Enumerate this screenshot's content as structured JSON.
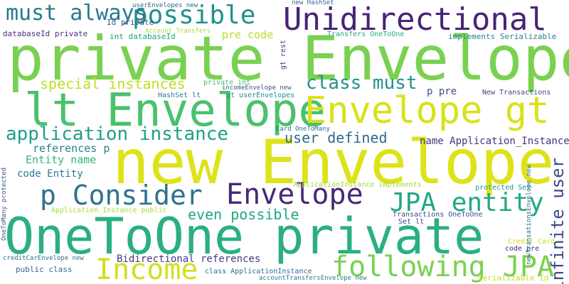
{
  "words": [
    {
      "text": "private Envelope",
      "color": "#7ad151"
    },
    {
      "text": "new Envelope",
      "color": "#dde318"
    },
    {
      "text": "OneToOne private",
      "color": "#2ab07f"
    },
    {
      "text": "lt Envelope",
      "color": "#4ac16d"
    },
    {
      "text": "Envelope gt",
      "color": "#d8e219"
    },
    {
      "text": "Unidirectional",
      "color": "#482475"
    },
    {
      "text": "possible",
      "color": "#21918c"
    },
    {
      "text": "must always",
      "color": "#29798e"
    },
    {
      "text": "p Consider",
      "color": "#2c728e"
    },
    {
      "text": "Envelope",
      "color": "#482878"
    },
    {
      "text": "JPA entity",
      "color": "#22a884"
    },
    {
      "text": "following JPA",
      "color": "#7ad151"
    },
    {
      "text": "Income",
      "color": "#d0e11c"
    },
    {
      "text": "application instance",
      "color": "#1f9e89"
    },
    {
      "text": "special instances",
      "color": "#bddf26"
    },
    {
      "text": "class must",
      "color": "#21918c"
    },
    {
      "text": "infinite user",
      "color": "#3e4a89"
    },
    {
      "text": "user defined",
      "color": "#31688e"
    },
    {
      "text": "even possible",
      "color": "#20a486"
    },
    {
      "text": "references p",
      "color": "#26828e"
    },
    {
      "text": "Entity name",
      "color": "#35b779"
    },
    {
      "text": "code Entity",
      "color": "#287c8e"
    },
    {
      "text": "name Application_Instance",
      "color": "#46337e"
    },
    {
      "text": "Bidirectional references",
      "color": "#443983"
    },
    {
      "text": "pre code",
      "color": "#b5de2b"
    },
    {
      "text": "p pre",
      "color": "#3b528b"
    },
    {
      "text": "public class",
      "color": "#31688e"
    },
    {
      "text": "userEnvelopes new",
      "color": "#33638d"
    },
    {
      "text": "Id private",
      "color": "#3b528b"
    },
    {
      "text": "databaseId private",
      "color": "#46327e"
    },
    {
      "text": "int databaseId",
      "color": "#1fa188"
    },
    {
      "text": "Account Transfers",
      "color": "#a8db34"
    },
    {
      "text": "new HashSet",
      "color": "#31688e"
    },
    {
      "text": "Transfers OneToOne",
      "color": "#22a884"
    },
    {
      "text": "implements Serializable",
      "color": "#26828e"
    },
    {
      "text": "gt rest",
      "color": "#453781"
    },
    {
      "text": "private int",
      "color": "#3fbc73"
    },
    {
      "text": "HashSet lt",
      "color": "#2a788e"
    },
    {
      "text": "incomeEnvelope new",
      "color": "#3b528b"
    },
    {
      "text": "gt userEnvelopes",
      "color": "#23898e"
    },
    {
      "text": "New Transactions",
      "color": "#3e4989"
    },
    {
      "text": "Card OneToMany",
      "color": "#2d708e"
    },
    {
      "text": "ApplicationInstance implements",
      "color": "#a0da39"
    },
    {
      "text": "Application_Instance public",
      "color": "#a5db36"
    },
    {
      "text": "protected Set",
      "color": "#1e9c89"
    },
    {
      "text": "Transactions OneToOne",
      "color": "#3e4989"
    },
    {
      "text": "Set lt",
      "color": "#404688"
    },
    {
      "text": "Credit Card",
      "color": "#c8e020"
    },
    {
      "text": "code pre",
      "color": "#472d7b"
    },
    {
      "text": "creditCarEnvelope new",
      "color": "#2f6c8e"
    },
    {
      "text": "class ApplicationInstance",
      "color": "#306a8e"
    },
    {
      "text": "accountTransfersEnvelope new",
      "color": "#297b8e"
    },
    {
      "text": "Serializable Id",
      "color": "#c2df23"
    },
    {
      "text": "newTransationsEnvelope new",
      "color": "#2e6e8e"
    },
    {
      "text": "OneToMany protected",
      "color": "#3b528b"
    }
  ]
}
